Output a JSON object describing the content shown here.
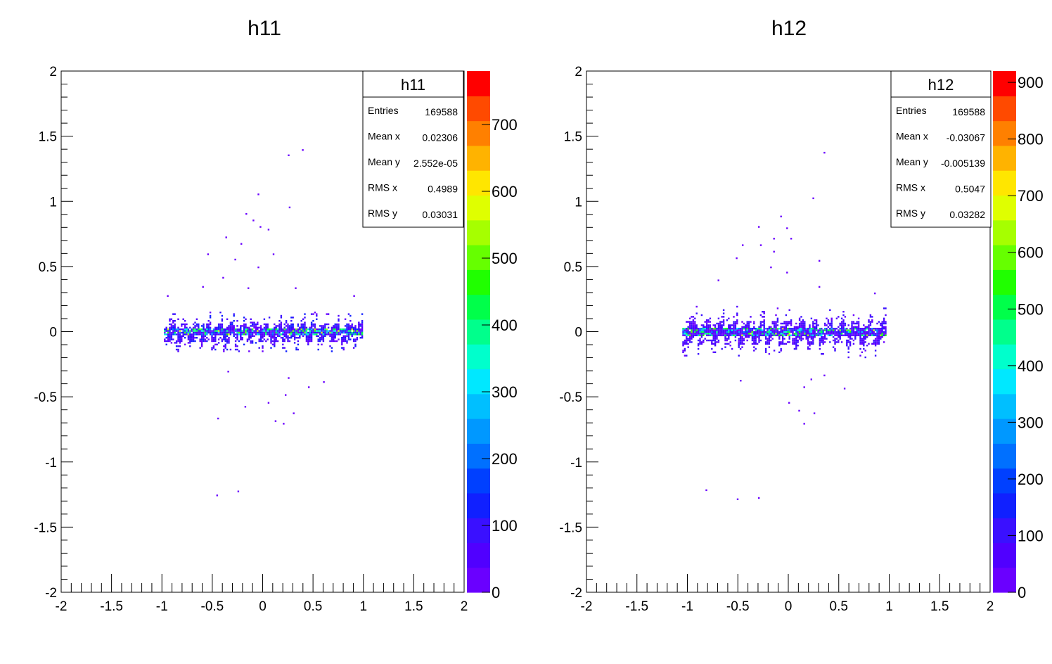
{
  "chart_data": [
    {
      "type": "heatmap",
      "title": "h11",
      "xlim": [
        -2,
        2
      ],
      "ylim": [
        -2,
        2
      ],
      "x_ticks": [
        "-2",
        "-1.5",
        "-1",
        "-0.5",
        "0",
        "0.5",
        "1",
        "1.5",
        "2"
      ],
      "y_ticks": [
        "-2",
        "-1.5",
        "-1",
        "-0.5",
        "0",
        "0.5",
        "1",
        "1.5",
        "2"
      ],
      "x_tick_values": [
        -2,
        -1.5,
        -1,
        -0.5,
        0,
        0.5,
        1,
        1.5,
        2
      ],
      "y_tick_values": [
        -2,
        -1.5,
        -1,
        -0.5,
        0,
        0.5,
        1,
        1.5,
        2
      ],
      "z_max": 780,
      "z_ticks": [
        "0",
        "100",
        "200",
        "300",
        "400",
        "500",
        "600",
        "700"
      ],
      "z_tick_values": [
        0,
        100,
        200,
        300,
        400,
        500,
        600,
        700
      ],
      "band": {
        "x_range": [
          -0.98,
          1.0
        ],
        "y_halfwidth": 0.07,
        "streaks": 17,
        "streak_tilt": 0.35
      },
      "stats": {
        "title": "h11",
        "rows": [
          {
            "label": "Entries",
            "value": "169588"
          },
          {
            "label": "Mean x",
            "value": "0.02306"
          },
          {
            "label": "Mean y",
            "value": "2.552e-05"
          },
          {
            "label": "RMS x",
            "value": "0.4989"
          },
          {
            "label": "RMS y",
            "value": "0.03031"
          }
        ]
      },
      "scatter_points": [
        [
          0.39,
          1.4
        ],
        [
          0.25,
          1.36
        ],
        [
          -0.05,
          1.06
        ],
        [
          0.26,
          0.96
        ],
        [
          -0.17,
          0.91
        ],
        [
          -0.1,
          0.86
        ],
        [
          -0.03,
          0.81
        ],
        [
          0.05,
          0.79
        ],
        [
          -0.37,
          0.73
        ],
        [
          -0.22,
          0.68
        ],
        [
          0.1,
          0.6
        ],
        [
          -0.55,
          0.6
        ],
        [
          -0.28,
          0.56
        ],
        [
          -0.05,
          0.5
        ],
        [
          -0.4,
          0.42
        ],
        [
          -0.6,
          0.35
        ],
        [
          0.32,
          0.34
        ],
        [
          -0.15,
          0.34
        ],
        [
          0.9,
          0.28
        ],
        [
          -0.95,
          0.28
        ],
        [
          -0.35,
          -0.3
        ],
        [
          0.25,
          -0.35
        ],
        [
          0.6,
          -0.38
        ],
        [
          0.45,
          -0.42
        ],
        [
          0.22,
          -0.48
        ],
        [
          -0.18,
          -0.57
        ],
        [
          0.05,
          -0.54
        ],
        [
          0.3,
          -0.62
        ],
        [
          -0.45,
          -0.66
        ],
        [
          0.12,
          -0.68
        ],
        [
          0.2,
          -0.7
        ],
        [
          -0.25,
          -1.22
        ],
        [
          -0.46,
          -1.25
        ]
      ]
    },
    {
      "type": "heatmap",
      "title": "h12",
      "xlim": [
        -2,
        2
      ],
      "ylim": [
        -2,
        2
      ],
      "x_ticks": [
        "-2",
        "-1.5",
        "-1",
        "-0.5",
        "0",
        "0.5",
        "1",
        "1.5",
        "2"
      ],
      "y_ticks": [
        "-2",
        "-1.5",
        "-1",
        "-0.5",
        "0",
        "0.5",
        "1",
        "1.5",
        "2"
      ],
      "x_tick_values": [
        -2,
        -1.5,
        -1,
        -0.5,
        0,
        0.5,
        1,
        1.5,
        2
      ],
      "y_tick_values": [
        -2,
        -1.5,
        -1,
        -0.5,
        0,
        0.5,
        1,
        1.5,
        2
      ],
      "z_max": 920,
      "z_ticks": [
        "0",
        "100",
        "200",
        "300",
        "400",
        "500",
        "600",
        "700",
        "800",
        "900"
      ],
      "z_tick_values": [
        0,
        100,
        200,
        300,
        400,
        500,
        600,
        700,
        800,
        900
      ],
      "band": {
        "x_range": [
          -1.05,
          0.97
        ],
        "y_halfwidth": 0.09,
        "streaks": 15,
        "streak_tilt": 0.35
      },
      "stats": {
        "title": "h12",
        "rows": [
          {
            "label": "Entries",
            "value": "169588"
          },
          {
            "label": "Mean x",
            "value": "-0.03067"
          },
          {
            "label": "Mean y",
            "value": "-0.005139"
          },
          {
            "label": "RMS x",
            "value": "0.5047"
          },
          {
            "label": "RMS y",
            "value": "0.03282"
          }
        ]
      },
      "scatter_points": [
        [
          0.35,
          1.38
        ],
        [
          0.24,
          1.03
        ],
        [
          -0.08,
          0.89
        ],
        [
          -0.3,
          0.81
        ],
        [
          -0.02,
          0.8
        ],
        [
          -0.15,
          0.72
        ],
        [
          0.02,
          0.72
        ],
        [
          -0.28,
          0.67
        ],
        [
          -0.46,
          0.67
        ],
        [
          -0.15,
          0.62
        ],
        [
          -0.52,
          0.57
        ],
        [
          -0.18,
          0.5
        ],
        [
          0.3,
          0.55
        ],
        [
          -0.02,
          0.46
        ],
        [
          0.3,
          0.35
        ],
        [
          -0.7,
          0.4
        ],
        [
          0.85,
          0.3
        ],
        [
          -0.48,
          -0.37
        ],
        [
          0.15,
          -0.42
        ],
        [
          0.55,
          -0.43
        ],
        [
          0.35,
          -0.33
        ],
        [
          0.22,
          -0.36
        ],
        [
          0.0,
          -0.54
        ],
        [
          0.1,
          -0.6
        ],
        [
          0.25,
          -0.62
        ],
        [
          0.15,
          -0.7
        ],
        [
          -0.82,
          -1.21
        ],
        [
          -0.51,
          -1.28
        ],
        [
          -0.3,
          -1.27
        ]
      ]
    }
  ]
}
